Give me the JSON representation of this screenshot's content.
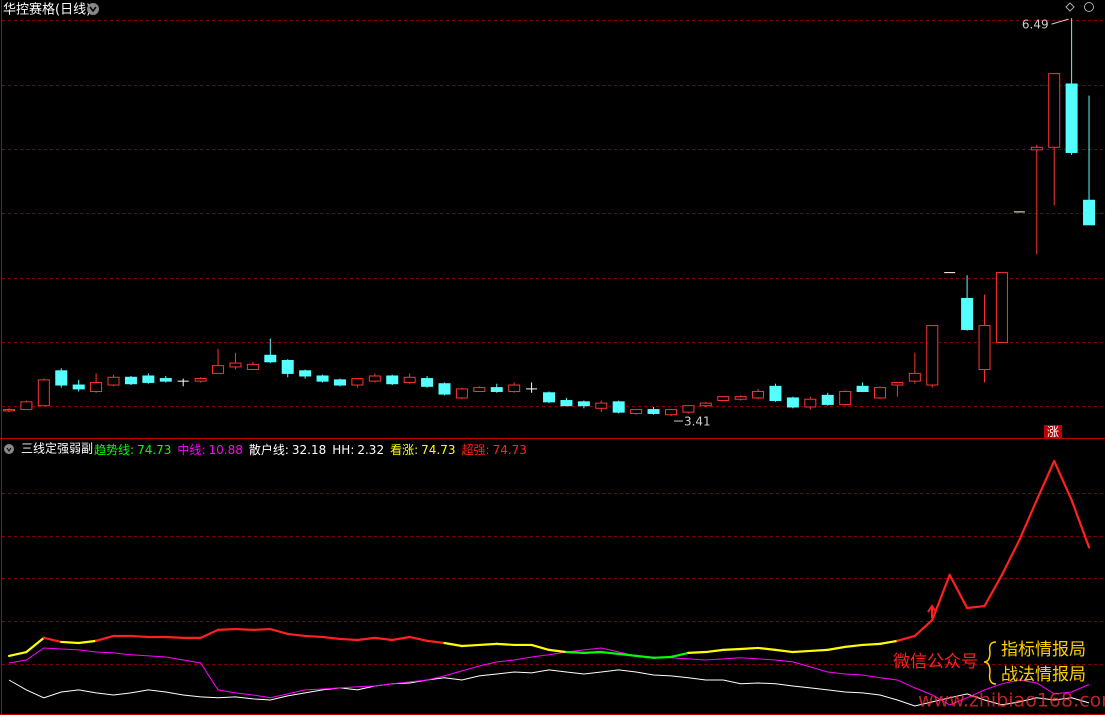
{
  "chart_data": [
    {
      "type": "candlestick",
      "title": "华控赛格(日线)",
      "annotation": "涨",
      "up_color": "#ff3232",
      "down_color": "#54ffff",
      "flat_color": "#ffffff",
      "ylim": [
        3.24,
        6.63
      ],
      "open": [
        3.45,
        3.46,
        3.49,
        3.76,
        3.65,
        3.6,
        3.65,
        3.71,
        3.72,
        3.7,
        3.68,
        3.68,
        3.74,
        3.79,
        3.77,
        3.88,
        3.84,
        3.76,
        3.72,
        3.69,
        3.65,
        3.68,
        3.72,
        3.67,
        3.7,
        3.66,
        3.55,
        3.6,
        3.63,
        3.6,
        3.62,
        3.59,
        3.53,
        3.52,
        3.47,
        3.52,
        3.43,
        3.46,
        3.42,
        3.44,
        3.49,
        3.53,
        3.54,
        3.55,
        3.64,
        3.55,
        3.48,
        3.57,
        3.5,
        3.64,
        3.55,
        3.65,
        3.68,
        3.65,
        4.52,
        4.32,
        3.77,
        3.98,
        4.99,
        5.47,
        5.49,
        5.98,
        5.08
      ],
      "high": [
        3.47,
        3.53,
        3.7,
        3.78,
        3.69,
        3.74,
        3.73,
        3.72,
        3.74,
        3.72,
        3.7,
        3.71,
        3.93,
        3.9,
        3.83,
        4.01,
        3.85,
        3.77,
        3.73,
        3.7,
        3.7,
        3.74,
        3.73,
        3.74,
        3.72,
        3.67,
        3.63,
        3.64,
        3.66,
        3.67,
        3.67,
        3.6,
        3.55,
        3.53,
        3.53,
        3.53,
        3.46,
        3.48,
        3.46,
        3.49,
        3.52,
        3.56,
        3.57,
        3.62,
        3.66,
        3.56,
        3.56,
        3.59,
        3.61,
        3.67,
        3.64,
        3.67,
        3.9,
        4.11,
        4.52,
        4.5,
        4.35,
        4.52,
        4.99,
        5.51,
        6.06,
        6.49,
        5.89
      ],
      "low": [
        3.44,
        3.46,
        3.49,
        3.63,
        3.6,
        3.59,
        3.64,
        3.65,
        3.66,
        3.67,
        3.64,
        3.67,
        3.74,
        3.77,
        3.77,
        3.82,
        3.71,
        3.7,
        3.67,
        3.64,
        3.63,
        3.67,
        3.65,
        3.66,
        3.63,
        3.57,
        3.54,
        3.6,
        3.59,
        3.59,
        3.59,
        3.51,
        3.49,
        3.47,
        3.44,
        3.43,
        3.42,
        3.42,
        3.41,
        3.43,
        3.48,
        3.53,
        3.53,
        3.54,
        3.52,
        3.47,
        3.46,
        3.49,
        3.49,
        3.6,
        3.54,
        3.56,
        3.66,
        3.63,
        4.52,
        4.07,
        3.67,
        3.98,
        4.99,
        4.66,
        5.04,
        5.43,
        4.89
      ],
      "close": [
        3.46,
        3.52,
        3.69,
        3.65,
        3.62,
        3.67,
        3.71,
        3.66,
        3.67,
        3.68,
        3.68,
        3.7,
        3.8,
        3.82,
        3.81,
        3.83,
        3.74,
        3.72,
        3.68,
        3.65,
        3.7,
        3.72,
        3.66,
        3.71,
        3.64,
        3.58,
        3.62,
        3.63,
        3.6,
        3.65,
        3.62,
        3.52,
        3.49,
        3.49,
        3.51,
        3.44,
        3.46,
        3.43,
        3.46,
        3.49,
        3.51,
        3.56,
        3.56,
        3.6,
        3.53,
        3.48,
        3.54,
        3.5,
        3.6,
        3.6,
        3.63,
        3.67,
        3.74,
        4.11,
        4.52,
        4.08,
        4.11,
        4.52,
        4.99,
        5.49,
        6.06,
        5.45,
        4.89
      ]
    },
    {
      "type": "line",
      "title": "三线定强弱副",
      "ylim": [
        -3.3,
        124.2
      ],
      "legend": [
        {
          "name": "趋势线",
          "value": 74.73,
          "color": "#00ff00"
        },
        {
          "name": "中线",
          "value": 10.88,
          "color": "#ff00ff"
        },
        {
          "name": "散户线",
          "value": 32.18,
          "color": "#ffffff"
        },
        {
          "name": "HH",
          "value": 2.32,
          "color": "#ffffff"
        },
        {
          "name": "看涨",
          "value": 74.73,
          "color": "#ffff00"
        },
        {
          "name": "超强",
          "value": 74.73,
          "color": "#ff2020"
        }
      ],
      "series": [
        {
          "name": "趋势线",
          "color": "#00ff00",
          "values": [
            24.2,
            26.0,
            32.6,
            30.7,
            30.2,
            31.2,
            33.5,
            33.5,
            33.0,
            33.0,
            32.6,
            32.6,
            36.3,
            36.7,
            36.3,
            36.7,
            34.4,
            33.5,
            33.0,
            32.1,
            31.6,
            32.6,
            31.6,
            33.0,
            31.2,
            30.2,
            28.8,
            29.3,
            29.8,
            29.3,
            29.3,
            27.0,
            26.0,
            25.6,
            26.0,
            25.1,
            24.2,
            23.3,
            23.7,
            25.6,
            26.0,
            27.0,
            27.4,
            27.9,
            27.0,
            26.0,
            26.5,
            27.0,
            28.4,
            29.3,
            29.8,
            31.2,
            33.5,
            40.9,
            61.9,
            46.5,
            47.4,
            61.9,
            78.1,
            96.7,
            114.9,
            96.7,
            74.73
          ],
          "segment_colors": [
            "#ffff00",
            "#ffff00",
            "#ff2020",
            "#ffff00",
            "#ffff00",
            "#ff2020",
            "#ff2020",
            "#ff2020",
            "#ff2020",
            "#ff2020",
            "#ff2020",
            "#ff2020",
            "#ff2020",
            "#ff2020",
            "#ff2020",
            "#ff2020",
            "#ff2020",
            "#ff2020",
            "#ff2020",
            "#ff2020",
            "#ff2020",
            "#ff2020",
            "#ff2020",
            "#ff2020",
            "#ff2020",
            "#ffff00",
            "#ffff00",
            "#ffff00",
            "#ffff00",
            "#ffff00",
            "#ffff00",
            "#ffff00",
            "#00ff00",
            "#00ff00",
            "#00ff00",
            "#00ff00",
            "#00ff00",
            "#00ff00",
            "#00ff00",
            "#ffff00",
            "#ffff00",
            "#ffff00",
            "#ffff00",
            "#ffff00",
            "#ffff00",
            "#ffff00",
            "#ffff00",
            "#ffff00",
            "#ffff00",
            "#ffff00",
            "#ffff00",
            "#ff2020",
            "#ff2020",
            "#ff2020",
            "#ff2020",
            "#ff2020",
            "#ff2020",
            "#ff2020",
            "#ff2020",
            "#ff2020",
            "#ff2020",
            "#ff2020"
          ]
        },
        {
          "name": "中线",
          "color": "#ff00ff",
          "values": [
            20.9,
            22.3,
            27.9,
            27.4,
            27.0,
            26.0,
            25.6,
            24.7,
            24.2,
            23.7,
            22.3,
            20.9,
            8.4,
            7.0,
            6.0,
            4.7,
            6.5,
            8.4,
            8.8,
            9.3,
            9.8,
            10.2,
            11.2,
            12.1,
            13.0,
            14.9,
            17.2,
            19.5,
            21.4,
            22.3,
            23.7,
            24.7,
            26.0,
            27.0,
            27.9,
            26.0,
            24.2,
            23.7,
            23.3,
            22.8,
            22.3,
            22.8,
            23.3,
            22.8,
            22.3,
            21.4,
            19.1,
            16.7,
            15.8,
            15.3,
            14.0,
            13.0,
            9.3,
            6.0,
            1.4,
            4.7,
            8.4,
            11.2,
            13.0,
            11.6,
            6.5,
            7.4,
            10.88
          ]
        },
        {
          "name": "HH",
          "color": "#ffffff",
          "values": [
            13.0,
            8.4,
            4.7,
            7.4,
            8.4,
            7.0,
            6.0,
            7.0,
            8.4,
            7.4,
            6.0,
            5.1,
            4.7,
            5.1,
            4.2,
            3.7,
            5.6,
            7.0,
            8.4,
            9.3,
            8.4,
            10.2,
            11.2,
            11.6,
            13.0,
            14.0,
            13.0,
            14.9,
            15.8,
            16.7,
            16.3,
            17.7,
            16.7,
            15.8,
            16.7,
            17.7,
            16.7,
            15.3,
            14.9,
            14.0,
            13.0,
            13.0,
            11.2,
            11.6,
            11.2,
            10.2,
            9.3,
            8.4,
            7.4,
            7.0,
            6.0,
            3.7,
            0.9,
            2.8,
            4.7,
            6.5,
            3.7,
            1.4,
            2.8,
            4.7,
            3.7,
            4.7,
            2.32
          ]
        }
      ],
      "annotations": [
        "微信公众号",
        "指标情报局",
        "战法情报局",
        "www.zhibiao168.com"
      ]
    }
  ]
}
